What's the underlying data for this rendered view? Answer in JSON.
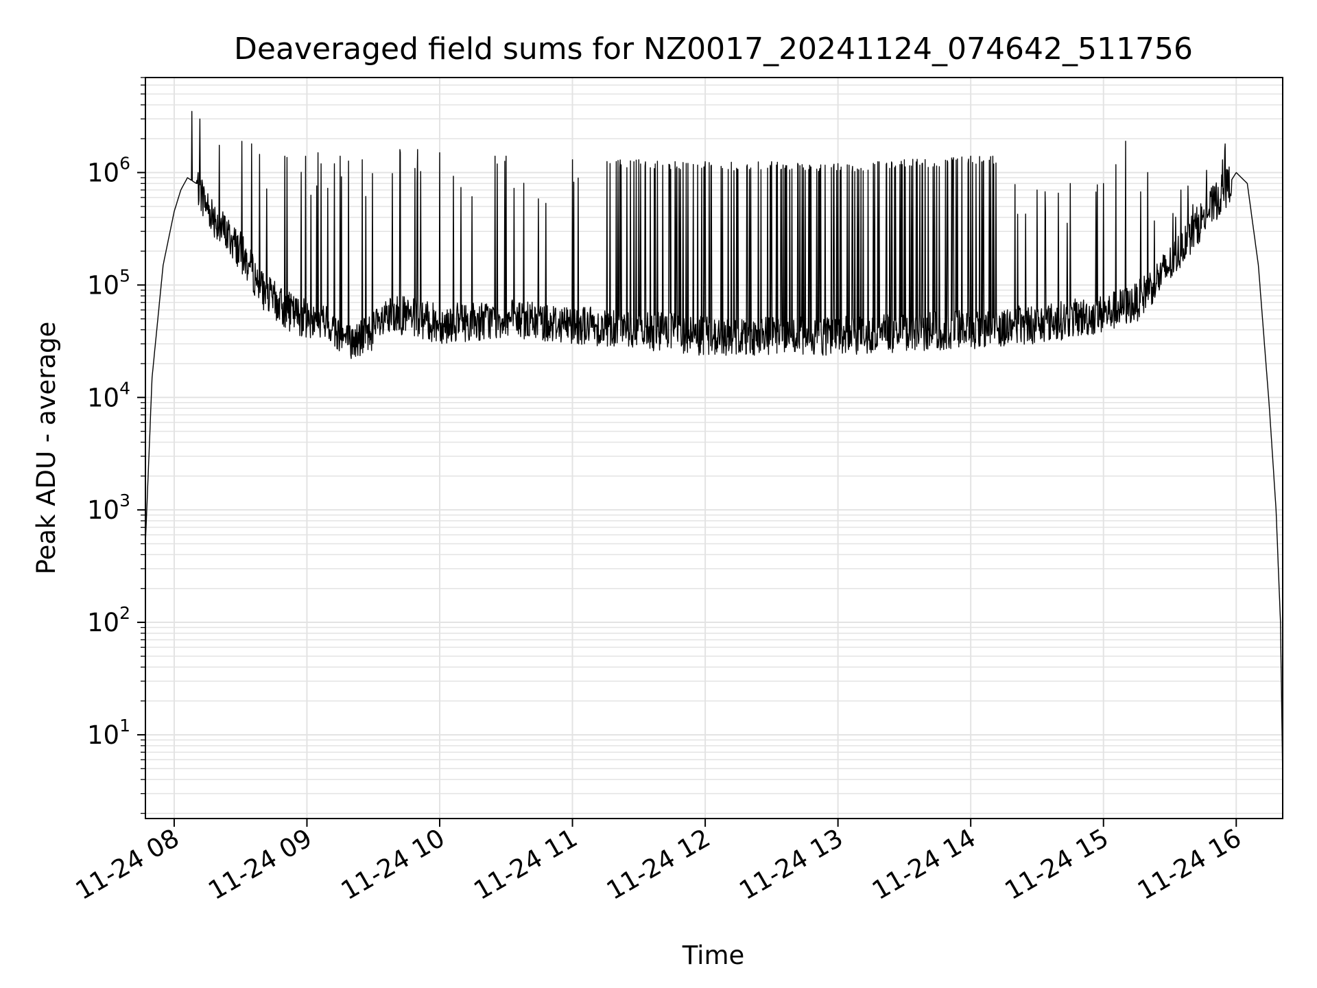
{
  "chart_data": {
    "type": "line",
    "title": "Deaveraged field sums for NZ0017_20241124_074642_511756",
    "xlabel": "Time",
    "ylabel": "Peak ADU - average",
    "yscale": "log",
    "grid": true,
    "grid_color": "#e3e3e3",
    "line_color": "#000000",
    "xlim": [
      "2024-11-24T07:47:00",
      "2024-11-24T16:21:00"
    ],
    "ylim": [
      1.8,
      7000000
    ],
    "x_ticks": [
      {
        "t": "2024-11-24T08:00:00",
        "label": "11-24 08"
      },
      {
        "t": "2024-11-24T09:00:00",
        "label": "11-24 09"
      },
      {
        "t": "2024-11-24T10:00:00",
        "label": "11-24 10"
      },
      {
        "t": "2024-11-24T11:00:00",
        "label": "11-24 11"
      },
      {
        "t": "2024-11-24T12:00:00",
        "label": "11-24 12"
      },
      {
        "t": "2024-11-24T13:00:00",
        "label": "11-24 13"
      },
      {
        "t": "2024-11-24T14:00:00",
        "label": "11-24 14"
      },
      {
        "t": "2024-11-24T15:00:00",
        "label": "11-24 15"
      },
      {
        "t": "2024-11-24T16:00:00",
        "label": "11-24 16"
      }
    ],
    "y_ticks": [
      {
        "v": 10,
        "base": "10",
        "exp": "1"
      },
      {
        "v": 100,
        "base": "10",
        "exp": "2"
      },
      {
        "v": 1000,
        "base": "10",
        "exp": "3"
      },
      {
        "v": 10000,
        "base": "10",
        "exp": "4"
      },
      {
        "v": 100000,
        "base": "10",
        "exp": "5"
      },
      {
        "v": 1000000,
        "base": "10",
        "exp": "6"
      }
    ],
    "series": [
      {
        "baseline": [
          [
            "2024-11-24T07:47:00",
            500
          ],
          [
            "2024-11-24T07:50:00",
            15000
          ],
          [
            "2024-11-24T07:55:00",
            150000
          ],
          [
            "2024-11-24T08:00:00",
            450000
          ],
          [
            "2024-11-24T08:03:00",
            700000
          ],
          [
            "2024-11-24T08:06:00",
            900000
          ],
          [
            "2024-11-24T08:10:00",
            800000
          ],
          [
            "2024-11-24T08:15:00",
            500000
          ],
          [
            "2024-11-24T08:20:00",
            350000
          ],
          [
            "2024-11-24T08:30:00",
            200000
          ],
          [
            "2024-11-24T08:40:00",
            90000
          ],
          [
            "2024-11-24T08:50:00",
            60000
          ],
          [
            "2024-11-24T09:00:00",
            50000
          ],
          [
            "2024-11-24T09:10:00",
            45000
          ],
          [
            "2024-11-24T09:20:00",
            30000
          ],
          [
            "2024-11-24T09:30:00",
            40000
          ],
          [
            "2024-11-24T09:40:00",
            55000
          ],
          [
            "2024-11-24T10:00:00",
            45000
          ],
          [
            "2024-11-24T10:30:00",
            50000
          ],
          [
            "2024-11-24T11:00:00",
            45000
          ],
          [
            "2024-11-24T11:30:00",
            40000
          ],
          [
            "2024-11-24T12:00:00",
            35000
          ],
          [
            "2024-11-24T12:30:00",
            35000
          ],
          [
            "2024-11-24T13:00:00",
            35000
          ],
          [
            "2024-11-24T13:30:00",
            38000
          ],
          [
            "2024-11-24T14:00:00",
            40000
          ],
          [
            "2024-11-24T14:30:00",
            45000
          ],
          [
            "2024-11-24T15:00:00",
            55000
          ],
          [
            "2024-11-24T15:15:00",
            70000
          ],
          [
            "2024-11-24T15:30:00",
            150000
          ],
          [
            "2024-11-24T15:45:00",
            400000
          ],
          [
            "2024-11-24T15:55:00",
            700000
          ],
          [
            "2024-11-24T16:00:00",
            1000000
          ],
          [
            "2024-11-24T16:05:00",
            800000
          ],
          [
            "2024-11-24T16:10:00",
            150000
          ],
          [
            "2024-11-24T16:15:00",
            8000
          ],
          [
            "2024-11-24T16:18:00",
            1000
          ],
          [
            "2024-11-24T16:20:00",
            100
          ],
          [
            "2024-11-24T16:21:00",
            4
          ]
        ],
        "spike_peaks": [
          [
            "2024-11-24T08:08:00",
            3500000
          ],
          [
            "2024-11-24T08:35:00",
            1800000
          ],
          [
            "2024-11-24T08:50:00",
            1400000
          ],
          [
            "2024-11-24T09:05:00",
            1500000
          ],
          [
            "2024-11-24T09:15:00",
            1400000
          ],
          [
            "2024-11-24T09:25:00",
            1300000
          ],
          [
            "2024-11-24T09:42:00",
            1600000
          ],
          [
            "2024-11-24T09:50:00",
            1600000
          ],
          [
            "2024-11-24T10:00:00",
            1500000
          ],
          [
            "2024-11-24T10:25:00",
            1400000
          ],
          [
            "2024-11-24T10:30:00",
            1400000
          ],
          [
            "2024-11-24T11:00:00",
            1300000
          ],
          [
            "2024-11-24T11:30:00",
            1300000
          ],
          [
            "2024-11-24T12:00:00",
            1250000
          ],
          [
            "2024-11-24T12:30:00",
            1250000
          ],
          [
            "2024-11-24T13:00:00",
            1200000
          ],
          [
            "2024-11-24T13:30:00",
            1300000
          ],
          [
            "2024-11-24T14:00:00",
            1400000
          ],
          [
            "2024-11-24T14:10:00",
            1400000
          ],
          [
            "2024-11-24T14:30:00",
            700000
          ],
          [
            "2024-11-24T14:45:00",
            800000
          ],
          [
            "2024-11-24T15:00:00",
            800000
          ],
          [
            "2024-11-24T15:10:00",
            1900000
          ],
          [
            "2024-11-24T15:20:00",
            1000000
          ],
          [
            "2024-11-24T15:35:00",
            700000
          ],
          [
            "2024-11-24T15:55:00",
            1800000
          ]
        ]
      }
    ]
  }
}
